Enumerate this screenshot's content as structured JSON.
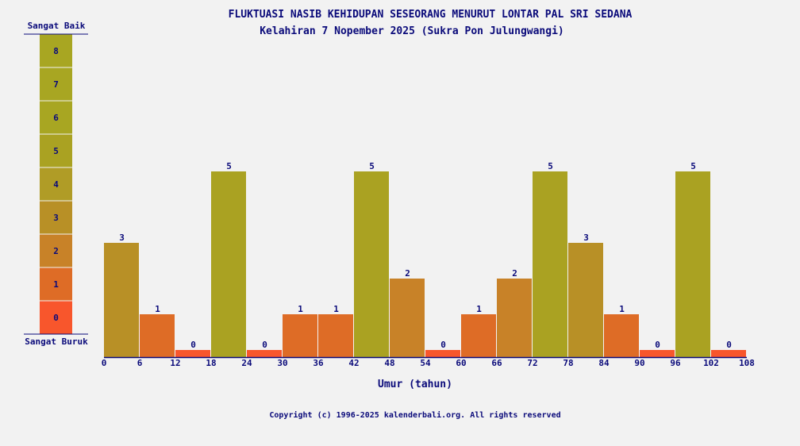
{
  "chart_data": {
    "type": "bar",
    "title": "FLUKTUASI NASIB KEHIDUPAN SESEORANG MENURUT LONTAR PAL SRI SEDANA",
    "subtitle": "Kelahiran 7 Nopember 2025 (Sukra Pon Julungwangi)",
    "xlabel": "Umur (tahun)",
    "ylabel": "",
    "x_ticks": [
      0,
      6,
      12,
      18,
      24,
      30,
      36,
      42,
      48,
      54,
      60,
      66,
      72,
      78,
      84,
      90,
      96,
      102,
      108
    ],
    "bin_width": 6,
    "xlim": [
      0,
      108
    ],
    "ylim": [
      0,
      8
    ],
    "values": [
      3,
      1,
      0,
      5,
      0,
      1,
      1,
      5,
      2,
      0,
      1,
      2,
      5,
      3,
      1,
      0,
      5,
      0
    ],
    "grid": false,
    "legend": {
      "top_label": "Sangat Baik",
      "bottom_label": "Sangat Buruk",
      "levels": [
        0,
        1,
        2,
        3,
        4,
        5,
        6,
        7,
        8
      ],
      "placement": "left"
    },
    "level_colors": {
      "0": "#f8562c",
      "1": "#de6c26",
      "2": "#c88228",
      "3": "#b89026",
      "4": "#b09c26",
      "5": "#aaa222",
      "6": "#a8a622",
      "7": "#a8a622",
      "8": "#a8a622"
    },
    "text_color": "#0a0a7a"
  },
  "footer": {
    "copyright": "Copyright (c) 1996-2025 kalenderbali.org. All rights reserved"
  }
}
